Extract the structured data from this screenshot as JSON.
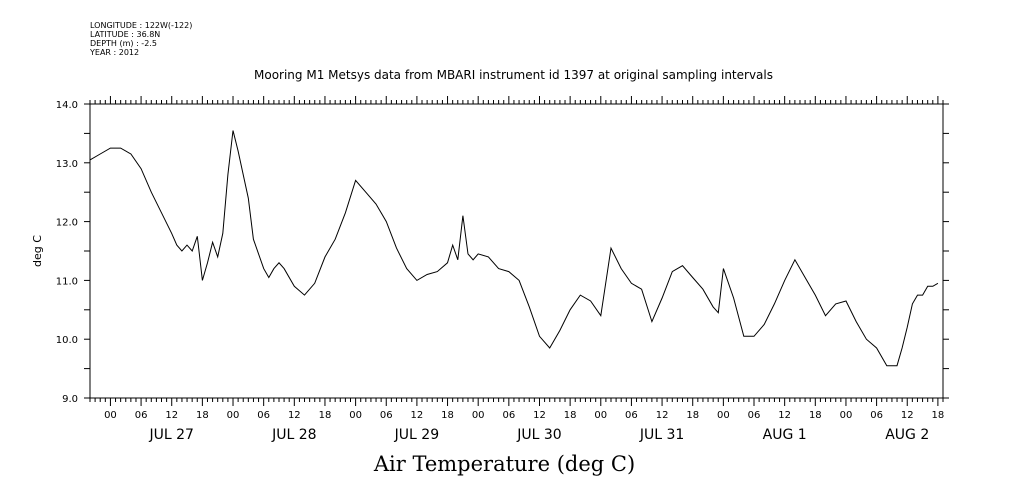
{
  "header": {
    "longitude": "LONGITUDE : 122W(-122)",
    "latitude": "LATITUDE : 36.8N",
    "depth": "DEPTH (m) : -2.5",
    "year": "YEAR : 2012"
  },
  "chart_data": {
    "type": "line",
    "title": "Mooring M1 Metsys data from MBARI instrument id 1397 at original sampling intervals",
    "xlabel": "Air Temperature (deg C)",
    "ylabel": "deg C",
    "ylim": [
      9.0,
      14.0
    ],
    "yticks": [
      "9.0",
      "10.0",
      "11.0",
      "12.0",
      "13.0",
      "14.0"
    ],
    "x_unit": "hours since JUL 27 00:00, 2012",
    "xlim": [
      -4,
      163
    ],
    "hour_ticks": [
      "00",
      "06",
      "12",
      "18",
      "00",
      "06",
      "12",
      "18",
      "00",
      "06",
      "12",
      "18",
      "00",
      "06",
      "12",
      "18",
      "00",
      "06",
      "12",
      "18",
      "00",
      "06",
      "12",
      "18",
      "00",
      "06",
      "12",
      "18"
    ],
    "day_labels": [
      "JUL 27",
      "JUL 28",
      "JUL 29",
      "JUL 30",
      "JUL 31",
      "AUG  1",
      "AUG  2"
    ],
    "grid": false,
    "series": [
      {
        "name": "",
        "x": [
          -4,
          -2,
          0,
          2,
          4,
          6,
          8,
          10,
          12,
          13,
          14,
          15,
          16,
          17,
          18,
          19,
          20,
          21,
          22,
          23,
          24,
          25,
          26,
          27,
          28,
          30,
          31,
          32,
          33,
          34,
          36,
          38,
          40,
          42,
          44,
          46,
          48,
          50,
          52,
          54,
          56,
          58,
          60,
          62,
          64,
          66,
          67,
          68,
          69,
          70,
          71,
          72,
          74,
          76,
          78,
          80,
          82,
          84,
          86,
          88,
          90,
          92,
          94,
          96,
          98,
          100,
          102,
          104,
          106,
          108,
          110,
          112,
          114,
          116,
          118,
          119,
          120,
          122,
          124,
          126,
          128,
          130,
          132,
          134,
          136,
          138,
          140,
          142,
          144,
          146,
          148,
          150,
          152,
          154,
          155,
          156,
          157,
          158,
          159,
          160,
          161,
          162
        ],
        "y": [
          13.05,
          13.15,
          13.25,
          13.25,
          13.15,
          12.9,
          12.5,
          12.15,
          11.8,
          11.6,
          11.5,
          11.6,
          11.5,
          11.75,
          11.0,
          11.3,
          11.65,
          11.4,
          11.8,
          12.8,
          13.55,
          13.2,
          12.8,
          12.4,
          11.7,
          11.2,
          11.05,
          11.2,
          11.3,
          11.2,
          10.9,
          10.75,
          10.95,
          11.4,
          11.7,
          12.15,
          12.7,
          12.5,
          12.3,
          12.0,
          11.55,
          11.2,
          11.0,
          11.1,
          11.15,
          11.3,
          11.6,
          11.35,
          12.1,
          11.45,
          11.35,
          11.45,
          11.4,
          11.2,
          11.15,
          11.0,
          10.55,
          10.05,
          9.85,
          10.15,
          10.5,
          10.75,
          10.65,
          10.4,
          11.55,
          11.2,
          10.95,
          10.85,
          10.3,
          10.7,
          11.15,
          11.25,
          11.05,
          10.85,
          10.55,
          10.45,
          11.2,
          10.7,
          10.05,
          10.05,
          10.25,
          10.6,
          11.0,
          11.35,
          11.05,
          10.75,
          10.4,
          10.6,
          10.65,
          10.3,
          10.0,
          9.85,
          9.55,
          9.55,
          9.85,
          10.2,
          10.6,
          10.75,
          10.75,
          10.9,
          10.9,
          10.95
        ]
      }
    ]
  }
}
